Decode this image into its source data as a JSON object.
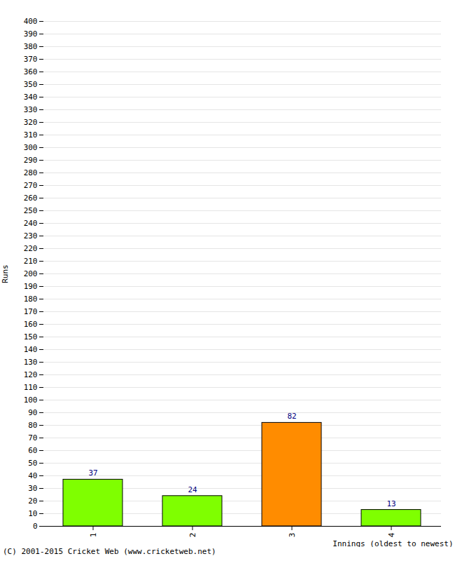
{
  "chart_data": {
    "type": "bar",
    "categories": [
      "1",
      "2",
      "3",
      "4"
    ],
    "values": [
      37,
      24,
      82,
      13
    ],
    "colors": [
      "#7fff00",
      "#7fff00",
      "#ff8c00",
      "#7fff00"
    ],
    "x_label": "Innings (oldest to newest)",
    "y_label": "Runs",
    "caption": "(C) 2001-2015 Cricket Web (www.cricketweb.net)",
    "ylim": [
      0,
      400
    ],
    "yticks": [
      0,
      10,
      20,
      30,
      40,
      50,
      60,
      70,
      80,
      90,
      100,
      110,
      120,
      130,
      140,
      150,
      160,
      170,
      180,
      190,
      200,
      210,
      220,
      230,
      240,
      250,
      260,
      270,
      280,
      290,
      300,
      310,
      320,
      330,
      340,
      350,
      360,
      370,
      380,
      390,
      400
    ],
    "grid": true,
    "data_labels": true
  }
}
